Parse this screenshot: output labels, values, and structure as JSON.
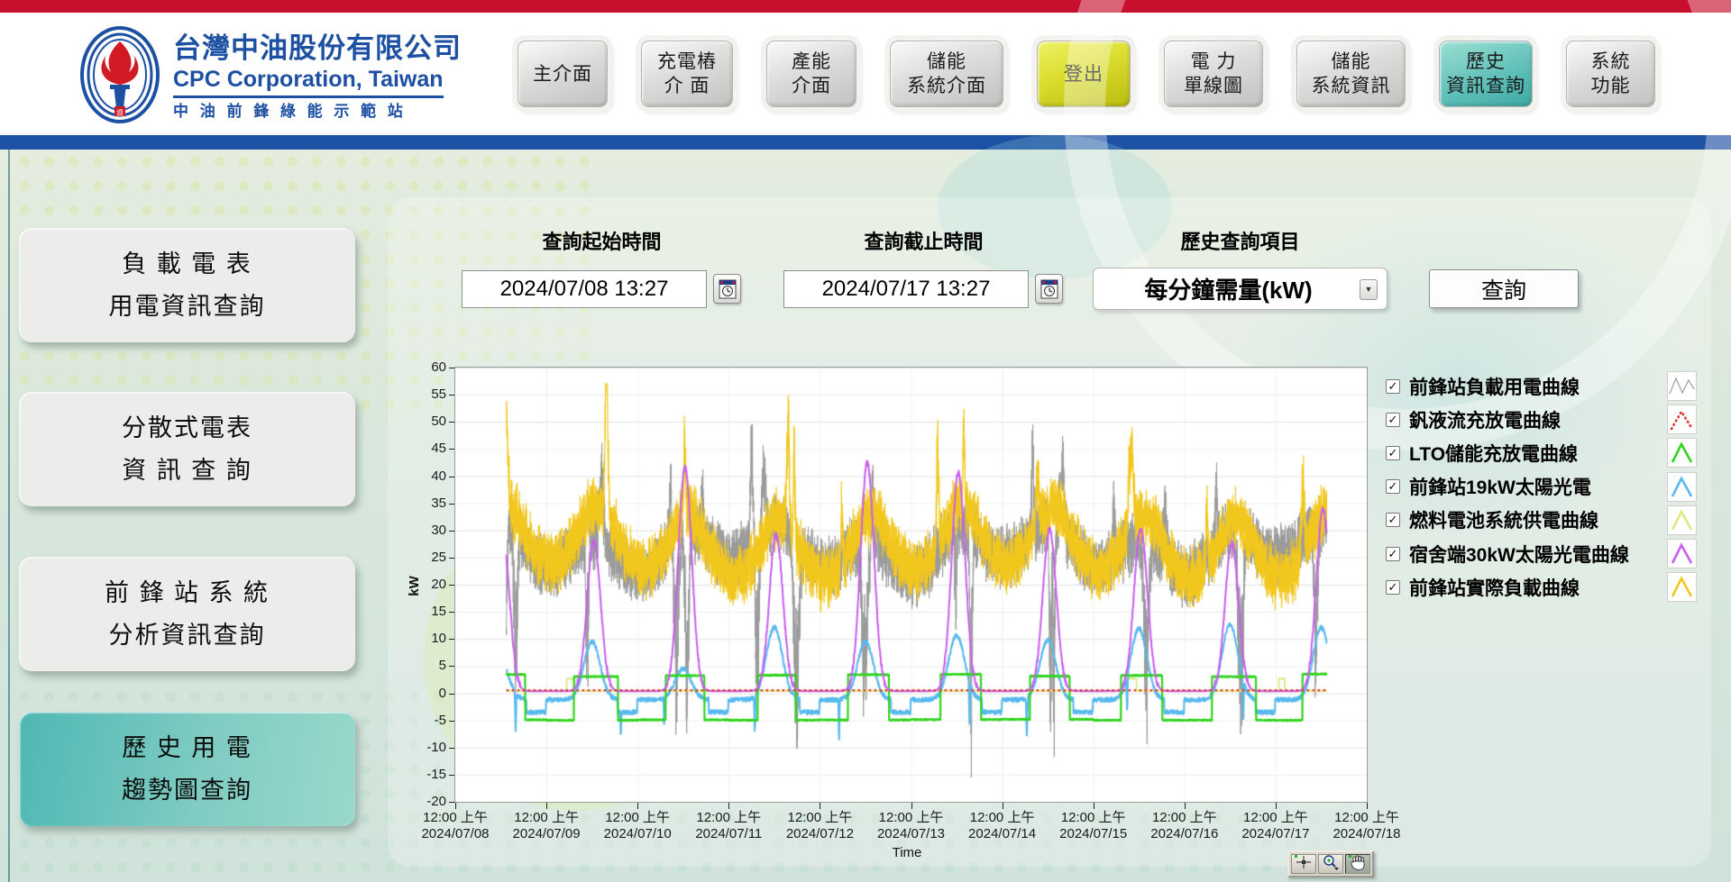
{
  "header": {
    "brand": {
      "title_zh": "台灣中油股份有限公司",
      "title_en": "CPC Corporation, Taiwan",
      "subtitle": "中 油 前 鋒 綠 能 示 範 站"
    },
    "nav": [
      {
        "id": "main",
        "lines": [
          "主介面"
        ],
        "variant": "default"
      },
      {
        "id": "charging-pile",
        "lines": [
          "充電樁",
          "介  面"
        ],
        "variant": "default"
      },
      {
        "id": "generation",
        "lines": [
          "產能",
          "介面"
        ],
        "variant": "default"
      },
      {
        "id": "storage-system",
        "lines": [
          "儲能",
          "系統介面"
        ],
        "variant": "default"
      },
      {
        "id": "logout",
        "lines": [
          "登出"
        ],
        "variant": "logout"
      },
      {
        "id": "single-line",
        "lines": [
          "電  力",
          "單線圖"
        ],
        "variant": "default"
      },
      {
        "id": "storage-info",
        "lines": [
          "儲能",
          "系統資訊"
        ],
        "variant": "default"
      },
      {
        "id": "history-query",
        "lines": [
          "歷史",
          "資訊查詢"
        ],
        "variant": "active"
      },
      {
        "id": "system-function",
        "lines": [
          "系統",
          "功能"
        ],
        "variant": "default"
      }
    ]
  },
  "sidebar": {
    "items": [
      {
        "id": "load-meter",
        "lines": [
          "負 載 電 表",
          "用電資訊查詢"
        ],
        "active": false
      },
      {
        "id": "distributed",
        "lines": [
          "分散式電表",
          "資 訊 查 詢"
        ],
        "active": false
      },
      {
        "id": "station-analys",
        "lines": [
          "前 鋒 站 系 統",
          "分析資訊查詢"
        ],
        "active": false
      },
      {
        "id": "history-trend",
        "lines": [
          "歷 史 用 電",
          "趨勢圖查詢"
        ],
        "active": true
      }
    ]
  },
  "query": {
    "start_label": "查詢起始時間",
    "end_label": "查詢截止時間",
    "item_label": "歷史查詢項目",
    "start_value": "2024/07/08 13:27",
    "end_value": "2024/07/17 13:27",
    "item_value": "每分鐘需量(kW)",
    "dropdown_arrow": "▼",
    "search_label": "查詢"
  },
  "chart_data": {
    "type": "line",
    "title": "",
    "xlabel": "Time",
    "ylabel": "kW",
    "ylim": [
      -20,
      60
    ],
    "ytick_step": 5,
    "grid": true,
    "legend_position": "right",
    "days": 10,
    "data_start_day": 0.5604,
    "data_end_day": 9.5604,
    "x_ticks": [
      {
        "time": "12:00 上午",
        "date": "2024/07/08"
      },
      {
        "time": "12:00 上午",
        "date": "2024/07/09"
      },
      {
        "time": "12:00 上午",
        "date": "2024/07/10"
      },
      {
        "time": "12:00 上午",
        "date": "2024/07/11"
      },
      {
        "time": "12:00 上午",
        "date": "2024/07/12"
      },
      {
        "time": "12:00 上午",
        "date": "2024/07/13"
      },
      {
        "time": "12:00 上午",
        "date": "2024/07/14"
      },
      {
        "time": "12:00 上午",
        "date": "2024/07/15"
      },
      {
        "time": "12:00 上午",
        "date": "2024/07/16"
      },
      {
        "time": "12:00 上午",
        "date": "2024/07/17"
      },
      {
        "time": "12:00 上午",
        "date": "2024/07/18"
      }
    ],
    "series": [
      {
        "name": "前鋒站負載用電曲線",
        "color": "#9b9b9b",
        "kind": "noisy-load",
        "width": 1.0,
        "base": 26.5,
        "min": -15.5,
        "max": 49.5
      },
      {
        "name": "燃料電池系統供電曲線",
        "color": "#dcea82",
        "kind": "flat-bumps",
        "width": 1.8,
        "level": 0.45,
        "bump_level": 2.7
      },
      {
        "name": "前鋒站19kW太陽光電",
        "color": "#58b9ee",
        "kind": "solar-small",
        "width": 2.0,
        "peak": 12,
        "night": -1.2,
        "evening": -3.5
      },
      {
        "name": "LTO儲能充放電曲線",
        "color": "#2fd41c",
        "kind": "square",
        "width": 2.2,
        "high": 3.3,
        "low": -4.8
      },
      {
        "name": "前鋒站實際負載曲線",
        "color": "#f2c71d",
        "kind": "noisy-gen",
        "width": 1.2,
        "base": 22,
        "min": 15,
        "max": 57
      },
      {
        "name": "宿舍端30kW太陽光電曲線",
        "color": "#c95ef0",
        "kind": "solar-big",
        "width": 2.0,
        "peak": 23,
        "night": 0.4
      },
      {
        "name": "釩液流充放電曲線",
        "color": "#e03a2f",
        "kind": "flat-dotted",
        "width": 2.6,
        "level": 0.55
      }
    ]
  },
  "legend": {
    "items": [
      {
        "label": "前鋒站負載用電曲線",
        "color": "#9b9b9b",
        "swatch": "zigzag",
        "checked": true
      },
      {
        "label": "釩液流充放電曲線",
        "color": "#e03a2f",
        "swatch": "dotted-peak",
        "checked": true
      },
      {
        "label": "LTO儲能充放電曲線",
        "color": "#2fd41c",
        "swatch": "peak",
        "checked": true
      },
      {
        "label": "前鋒站19kW太陽光電",
        "color": "#58b9ee",
        "swatch": "peak",
        "checked": true
      },
      {
        "label": "燃料電池系統供電曲線",
        "color": "#dcea82",
        "swatch": "peak",
        "checked": true
      },
      {
        "label": "宿舍端30kW太陽光電曲線",
        "color": "#c95ef0",
        "swatch": "peak",
        "checked": true
      },
      {
        "label": "前鋒站實際負載曲線",
        "color": "#f2c71d",
        "swatch": "peak",
        "checked": true
      }
    ],
    "checkmark": "✓"
  },
  "chart_tools": [
    {
      "id": "cursor-move",
      "pressed": false
    },
    {
      "id": "zoom",
      "pressed": false
    },
    {
      "id": "pan",
      "pressed": true
    }
  ]
}
